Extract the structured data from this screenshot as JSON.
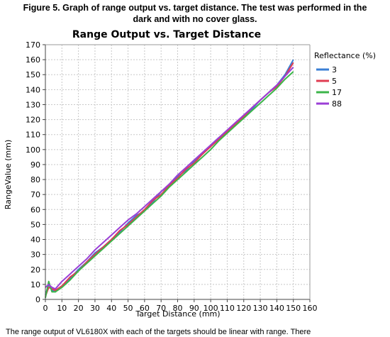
{
  "caption": {
    "line1": "Figure 5. Graph of range output vs. target distance. The test was performed in the",
    "line2": "dark and with no cover glass."
  },
  "body_text": "The range output of VL6180X with each of the targets should be linear with range. There",
  "chart_data": {
    "type": "line",
    "title": "Range Output vs. Target Distance",
    "xlabel": "Target Distance (mm)",
    "ylabel": "RangeValue (mm)",
    "xlim": [
      0,
      160
    ],
    "ylim": [
      0,
      170
    ],
    "xticks": [
      0,
      10,
      20,
      30,
      40,
      50,
      60,
      70,
      80,
      90,
      100,
      110,
      120,
      130,
      140,
      150,
      160
    ],
    "yticks": [
      0,
      10,
      20,
      30,
      40,
      50,
      60,
      70,
      80,
      90,
      100,
      110,
      120,
      130,
      140,
      150,
      160,
      170
    ],
    "grid": true,
    "legend": {
      "title": "Reflectance (%)",
      "position": "right"
    },
    "series": [
      {
        "name": "3",
        "color": "#3a7fd5",
        "x": [
          0,
          2,
          4,
          6,
          10,
          15,
          20,
          25,
          30,
          35,
          40,
          45,
          50,
          55,
          60,
          65,
          70,
          75,
          80,
          85,
          90,
          95,
          100,
          105,
          110,
          115,
          120,
          125,
          130,
          135,
          140,
          145,
          150
        ],
        "y": [
          3,
          10,
          6,
          5,
          9,
          14,
          20,
          25,
          31,
          35,
          40,
          45,
          51,
          56,
          59,
          65,
          72,
          76,
          82,
          86,
          92,
          97,
          103,
          108,
          112,
          117,
          122,
          127,
          133,
          138,
          143,
          150,
          160
        ]
      },
      {
        "name": "5",
        "color": "#e03c52",
        "x": [
          0,
          2,
          4,
          6,
          10,
          15,
          20,
          25,
          30,
          35,
          40,
          45,
          50,
          55,
          60,
          65,
          70,
          75,
          80,
          85,
          90,
          95,
          100,
          105,
          110,
          115,
          120,
          125,
          130,
          135,
          140,
          145,
          150
        ],
        "y": [
          2,
          8,
          7,
          6,
          9,
          15,
          19,
          25,
          30,
          35,
          40,
          46,
          50,
          55,
          60,
          66,
          70,
          76,
          81,
          87,
          91,
          97,
          102,
          107,
          112,
          117,
          122,
          128,
          133,
          138,
          142,
          149,
          158
        ]
      },
      {
        "name": "17",
        "color": "#3cb54a",
        "x": [
          0,
          2,
          4,
          6,
          10,
          15,
          20,
          25,
          30,
          35,
          40,
          45,
          50,
          55,
          60,
          65,
          70,
          75,
          80,
          85,
          90,
          95,
          100,
          105,
          110,
          115,
          120,
          125,
          130,
          135,
          140,
          145,
          150
        ],
        "y": [
          1,
          12,
          5,
          5,
          8,
          13,
          19,
          24,
          29,
          34,
          39,
          44,
          49,
          54,
          59,
          64,
          69,
          75,
          80,
          85,
          90,
          95,
          100,
          106,
          111,
          116,
          121,
          126,
          131,
          136,
          141,
          147,
          152
        ]
      },
      {
        "name": "88",
        "color": "#9b3fd6",
        "x": [
          0,
          2,
          4,
          6,
          10,
          15,
          20,
          25,
          30,
          35,
          40,
          45,
          50,
          55,
          60,
          65,
          70,
          75,
          80,
          85,
          90,
          95,
          100,
          105,
          110,
          115,
          120,
          125,
          130,
          135,
          140,
          145,
          150
        ],
        "y": [
          8,
          10,
          8,
          7,
          12,
          17,
          22,
          27,
          33,
          38,
          43,
          48,
          53,
          57,
          62,
          67,
          72,
          77,
          83,
          88,
          93,
          98,
          103,
          108,
          113,
          118,
          123,
          128,
          133,
          138,
          143,
          149,
          155
        ]
      }
    ]
  }
}
